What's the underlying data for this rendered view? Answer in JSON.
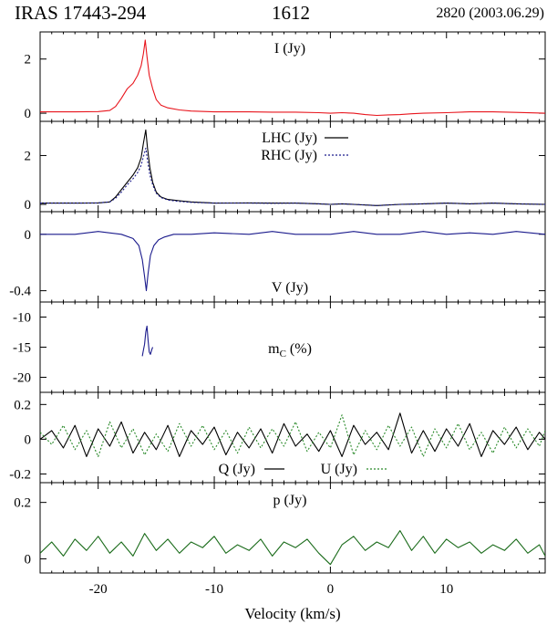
{
  "header": {
    "source": "IRAS 17443-294",
    "frequency": "1612",
    "epoch": "2820 (2003.06.29)"
  },
  "colors": {
    "I": "#e8141c",
    "LHC": "#000000",
    "RHC": "#1a1a8c",
    "V": "#1a1a8c",
    "mC": "#1a1a8c",
    "Q": "#000000",
    "U": "#2a8a2a",
    "p": "#1a6b1a"
  },
  "chart_data": [
    {
      "type": "line",
      "id": "I",
      "label": "I (Jy)",
      "ylim": [
        -0.3,
        3.0
      ],
      "yticks": [
        0,
        2
      ],
      "ytick_labels": [
        "0",
        "2"
      ],
      "series": [
        {
          "name": "I (Jy)",
          "x": [
            -25,
            -22,
            -20,
            -19,
            -18.5,
            -18,
            -17.5,
            -17,
            -16.6,
            -16.3,
            -16.1,
            -15.95,
            -15.8,
            -15.6,
            -15.3,
            -15,
            -14.6,
            -14,
            -13,
            -12,
            -10,
            -7,
            -5,
            -3,
            -1,
            0,
            1,
            2,
            3,
            4,
            5,
            6,
            7,
            8,
            10,
            12,
            14,
            16,
            18.5
          ],
          "y": [
            0.05,
            0.05,
            0.06,
            0.1,
            0.25,
            0.55,
            0.9,
            1.1,
            1.4,
            1.75,
            2.2,
            2.7,
            2.1,
            1.4,
            0.9,
            0.5,
            0.3,
            0.2,
            0.12,
            0.08,
            0.05,
            0.05,
            0.04,
            0.04,
            0.02,
            0.0,
            0.02,
            0.0,
            -0.05,
            -0.08,
            -0.06,
            -0.05,
            -0.02,
            0.0,
            0.02,
            0.05,
            0.05,
            0.03,
            0.0
          ]
        }
      ]
    },
    {
      "type": "line",
      "id": "LR",
      "ylim": [
        -0.3,
        3.4
      ],
      "yticks": [
        0,
        2
      ],
      "ytick_labels": [
        "0",
        "2"
      ],
      "legend": [
        "LHC (Jy)",
        "RHC (Jy)"
      ],
      "series": [
        {
          "name": "LHC (Jy)",
          "x": [
            -25,
            -22,
            -20,
            -19,
            -18.5,
            -18,
            -17.5,
            -17,
            -16.6,
            -16.3,
            -16.1,
            -15.9,
            -15.75,
            -15.55,
            -15.3,
            -15,
            -14.6,
            -14,
            -13,
            -12,
            -10,
            -7,
            -5,
            -3,
            -1,
            0,
            1,
            2,
            4,
            6,
            8,
            10,
            12,
            14,
            16,
            18.5
          ],
          "y": [
            0.05,
            0.05,
            0.06,
            0.1,
            0.3,
            0.6,
            0.9,
            1.2,
            1.5,
            1.9,
            2.5,
            3.05,
            2.3,
            1.5,
            0.9,
            0.5,
            0.3,
            0.2,
            0.15,
            0.1,
            0.05,
            0.06,
            0.05,
            0.05,
            0.02,
            0.0,
            0.02,
            0.0,
            -0.05,
            0.0,
            0.02,
            0.05,
            0.02,
            0.05,
            0.02,
            0.0
          ]
        },
        {
          "name": "RHC (Jy)",
          "x": [
            -25,
            -22,
            -20,
            -19,
            -18.5,
            -18,
            -17.5,
            -17,
            -16.6,
            -16.3,
            -16.1,
            -15.9,
            -15.75,
            -15.55,
            -15.3,
            -15,
            -14.6,
            -14,
            -13,
            -12,
            -10,
            -7,
            -5,
            -3,
            -1,
            0,
            1,
            2,
            4,
            6,
            8,
            10,
            12,
            14,
            16,
            18.5
          ],
          "y": [
            0.05,
            0.05,
            0.06,
            0.1,
            0.25,
            0.5,
            0.8,
            1.05,
            1.3,
            1.6,
            1.95,
            2.3,
            1.8,
            1.2,
            0.8,
            0.45,
            0.28,
            0.18,
            0.12,
            0.08,
            0.05,
            0.05,
            0.04,
            0.05,
            0.02,
            0.0,
            0.02,
            0.0,
            -0.05,
            0.0,
            0.02,
            0.05,
            0.02,
            0.05,
            0.02,
            0.0
          ]
        }
      ]
    },
    {
      "type": "line",
      "id": "V",
      "label": "V (Jy)",
      "ylim": [
        -0.48,
        0.16
      ],
      "yticks": [
        0,
        -0.4
      ],
      "ytick_labels": [
        "0",
        "-0.4"
      ],
      "series": [
        {
          "name": "V (Jy)",
          "x": [
            -25,
            -22,
            -20,
            -18,
            -17,
            -16.5,
            -16.2,
            -16,
            -15.85,
            -15.7,
            -15.5,
            -15.2,
            -14.8,
            -14.3,
            -13.5,
            -12,
            -10,
            -7,
            -5,
            -3,
            -1,
            0,
            2,
            4,
            6,
            8,
            10,
            12,
            14,
            16,
            18.5
          ],
          "y": [
            0.0,
            0.0,
            0.02,
            0.0,
            -0.03,
            -0.08,
            -0.18,
            -0.3,
            -0.4,
            -0.28,
            -0.15,
            -0.08,
            -0.04,
            -0.02,
            0.0,
            0.0,
            0.01,
            0.0,
            0.02,
            0.0,
            0.0,
            0.0,
            0.02,
            0.0,
            0.0,
            0.02,
            0.0,
            0.01,
            0.0,
            0.02,
            0.0
          ]
        }
      ]
    },
    {
      "type": "line",
      "id": "mC",
      "label": "mC (%)",
      "ylim": [
        -22.5,
        -7.5
      ],
      "yticks": [
        -10,
        -15,
        -20
      ],
      "ytick_labels": [
        "-10",
        "-15",
        "-20"
      ],
      "series": [
        {
          "name": "mC (%)",
          "x": [
            -16.2,
            -16.1,
            -16.0,
            -15.9,
            -15.8,
            -15.7,
            -15.6,
            -15.5,
            -15.4,
            -15.3
          ],
          "y": [
            -16.5,
            -15.5,
            -14.5,
            -12.5,
            -11.5,
            -13.8,
            -15.8,
            -16.2,
            -15.5,
            -15.0
          ]
        }
      ]
    },
    {
      "type": "line",
      "id": "QU",
      "ylim": [
        -0.25,
        0.27
      ],
      "yticks": [
        0.2,
        0,
        -0.2
      ],
      "ytick_labels": [
        "0.2",
        "0",
        "-0.2"
      ],
      "legend": [
        "Q (Jy)",
        "U (Jy)"
      ],
      "series": [
        {
          "name": "Q (Jy)",
          "x": [
            -25,
            -24,
            -23,
            -22,
            -21,
            -20,
            -19,
            -18,
            -17,
            -16,
            -15,
            -14,
            -13,
            -12,
            -11,
            -10,
            -9,
            -8,
            -7,
            -6,
            -5,
            -4,
            -3,
            -2,
            -1,
            0,
            1,
            2,
            3,
            4,
            5,
            6,
            7,
            8,
            9,
            10,
            11,
            12,
            13,
            14,
            15,
            16,
            17,
            18,
            18.5
          ],
          "y": [
            0.0,
            0.05,
            -0.05,
            0.08,
            -0.1,
            0.06,
            -0.04,
            0.1,
            -0.08,
            0.04,
            -0.06,
            0.08,
            -0.1,
            0.05,
            -0.03,
            0.07,
            -0.09,
            0.04,
            -0.05,
            0.06,
            -0.08,
            0.09,
            -0.04,
            0.03,
            -0.07,
            0.05,
            -0.1,
            0.08,
            -0.03,
            0.04,
            -0.06,
            0.15,
            -0.08,
            0.05,
            -0.07,
            0.06,
            -0.04,
            0.09,
            -0.1,
            0.05,
            -0.03,
            0.07,
            -0.06,
            0.04,
            0.0
          ]
        },
        {
          "name": "U (Jy)",
          "x": [
            -25,
            -24,
            -23,
            -22,
            -21,
            -20,
            -19,
            -18,
            -17,
            -16,
            -15,
            -14,
            -13,
            -12,
            -11,
            -10,
            -9,
            -8,
            -7,
            -6,
            -5,
            -4,
            -3,
            -2,
            -1,
            0,
            1,
            2,
            3,
            4,
            5,
            6,
            7,
            8,
            9,
            10,
            11,
            12,
            13,
            14,
            15,
            16,
            17,
            18,
            18.5
          ],
          "y": [
            0.04,
            -0.03,
            0.08,
            -0.06,
            0.05,
            -0.1,
            0.1,
            -0.05,
            0.06,
            -0.09,
            0.03,
            -0.07,
            0.09,
            -0.04,
            0.08,
            -0.06,
            0.05,
            -0.08,
            0.07,
            -0.05,
            0.06,
            -0.04,
            0.1,
            -0.07,
            0.04,
            -0.05,
            0.14,
            -0.09,
            0.05,
            -0.06,
            0.08,
            -0.04,
            0.07,
            -0.1,
            0.06,
            -0.05,
            0.09,
            -0.06,
            0.04,
            -0.08,
            0.07,
            -0.05,
            0.06,
            -0.04,
            0.05
          ]
        }
      ]
    },
    {
      "type": "line",
      "id": "p",
      "label": "p (Jy)",
      "ylim": [
        -0.05,
        0.27
      ],
      "yticks": [
        0.2,
        0
      ],
      "ytick_labels": [
        "0.2",
        "0"
      ],
      "series": [
        {
          "name": "p (Jy)",
          "x": [
            -25,
            -24,
            -23,
            -22,
            -21,
            -20,
            -19,
            -18,
            -17,
            -16,
            -15,
            -14,
            -13,
            -12,
            -11,
            -10,
            -9,
            -8,
            -7,
            -6,
            -5,
            -4,
            -3,
            -2,
            -1,
            0,
            1,
            2,
            3,
            4,
            5,
            6,
            7,
            8,
            9,
            10,
            11,
            12,
            13,
            14,
            15,
            16,
            17,
            18,
            18.5
          ],
          "y": [
            0.02,
            0.06,
            0.01,
            0.07,
            0.03,
            0.08,
            0.02,
            0.06,
            0.01,
            0.09,
            0.03,
            0.07,
            0.02,
            0.06,
            0.04,
            0.08,
            0.02,
            0.05,
            0.03,
            0.07,
            0.01,
            0.06,
            0.04,
            0.07,
            0.02,
            -0.02,
            0.05,
            0.08,
            0.03,
            0.06,
            0.04,
            0.1,
            0.03,
            0.08,
            0.02,
            0.07,
            0.04,
            0.06,
            0.02,
            0.05,
            0.03,
            0.07,
            0.02,
            0.05,
            0.01
          ]
        }
      ]
    }
  ],
  "xaxis": {
    "label": "Velocity (km/s)",
    "xlim": [
      -25,
      18.5
    ],
    "ticks": [
      -20,
      -10,
      0,
      10
    ],
    "tick_labels": [
      "-20",
      "-10",
      "0",
      "10"
    ]
  }
}
